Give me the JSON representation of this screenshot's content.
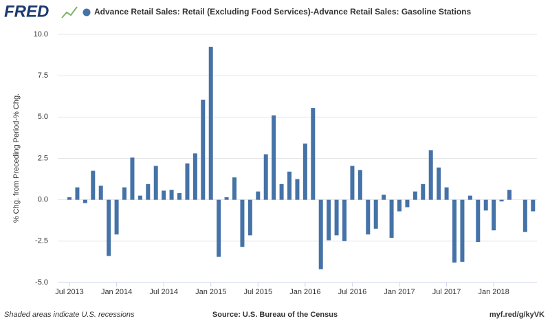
{
  "chart_data": {
    "type": "bar",
    "logo": "FRED",
    "title": "Advance Retail Sales: Retail (Excluding Food Services)-Advance Retail Sales: Gasoline Stations",
    "ylabel": "% Chg. from Preceding Period-% Chg.",
    "footer_left": "Shaded areas indicate U.S. recessions",
    "footer_center": "Source: U.S. Bureau of the Census",
    "footer_right": "myf.red/g/kyVK",
    "color": "#4572a7",
    "categories": [
      "Jul 2013",
      null,
      null,
      null,
      null,
      null,
      "Jan 2014",
      null,
      null,
      null,
      null,
      null,
      "Jul 2014",
      null,
      null,
      null,
      null,
      null,
      "Jan 2015",
      null,
      null,
      null,
      null,
      null,
      "Jul 2015",
      null,
      null,
      null,
      null,
      null,
      "Jan 2016",
      null,
      null,
      null,
      null,
      null,
      "Jul 2016",
      null,
      null,
      null,
      null,
      null,
      "Jan 2017",
      null,
      null,
      null,
      null,
      null,
      "Jul 2017",
      null,
      null,
      null,
      null,
      null,
      "Jan 2018",
      null,
      null,
      null,
      null,
      null
    ],
    "values": [
      0.15,
      0.75,
      -0.2,
      1.75,
      0.85,
      -3.4,
      -2.1,
      0.75,
      2.55,
      0.25,
      0.95,
      2.05,
      0.55,
      0.6,
      0.4,
      2.2,
      2.8,
      6.05,
      9.25,
      -3.45,
      0.15,
      1.35,
      -2.85,
      -2.15,
      0.5,
      2.75,
      5.1,
      0.95,
      1.7,
      1.25,
      3.4,
      5.55,
      -4.2,
      -2.45,
      -2.15,
      -2.5,
      2.05,
      1.8,
      -2.1,
      -1.75,
      0.3,
      -2.3,
      -0.7,
      -0.45,
      0.5,
      0.95,
      3.0,
      1.95,
      0.75,
      -3.8,
      -3.75,
      0.25,
      -2.55,
      -0.65,
      -1.85,
      -0.1,
      0.6,
      0,
      -1.95,
      -0.7
    ],
    "ylim": [
      -5,
      10
    ],
    "yticks": [
      {
        "value": -5,
        "label": "-5.0"
      },
      -2.5,
      {
        "value": 0,
        "label": "0.0"
      },
      2.5,
      {
        "value": 5,
        "label": "5.0"
      },
      7.5,
      {
        "value": 10,
        "label": "10.0"
      }
    ],
    "grid": true
  }
}
